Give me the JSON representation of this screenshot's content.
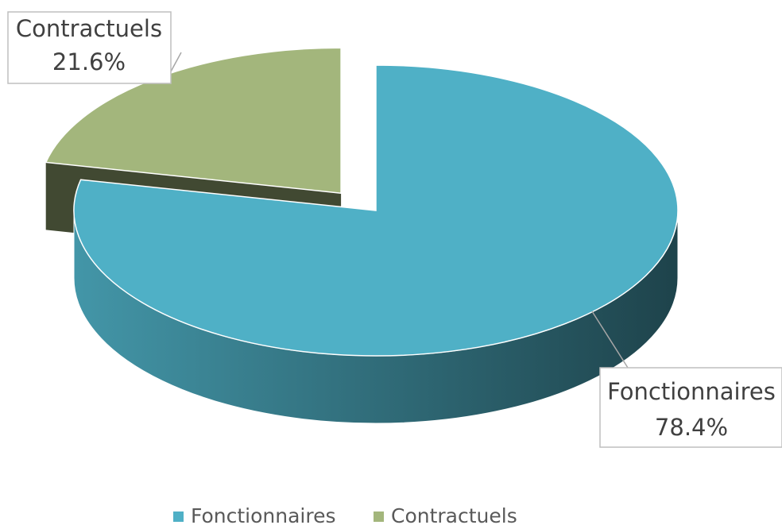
{
  "chart_data": {
    "type": "pie3d",
    "categories": [
      "Fonctionnaires",
      "Contractuels"
    ],
    "values": [
      78.4,
      21.6
    ],
    "value_labels": [
      "78.4%",
      "21.6%"
    ],
    "colors": [
      "#4fb0c6",
      "#a3b67c"
    ],
    "legend": "bottom"
  }
}
